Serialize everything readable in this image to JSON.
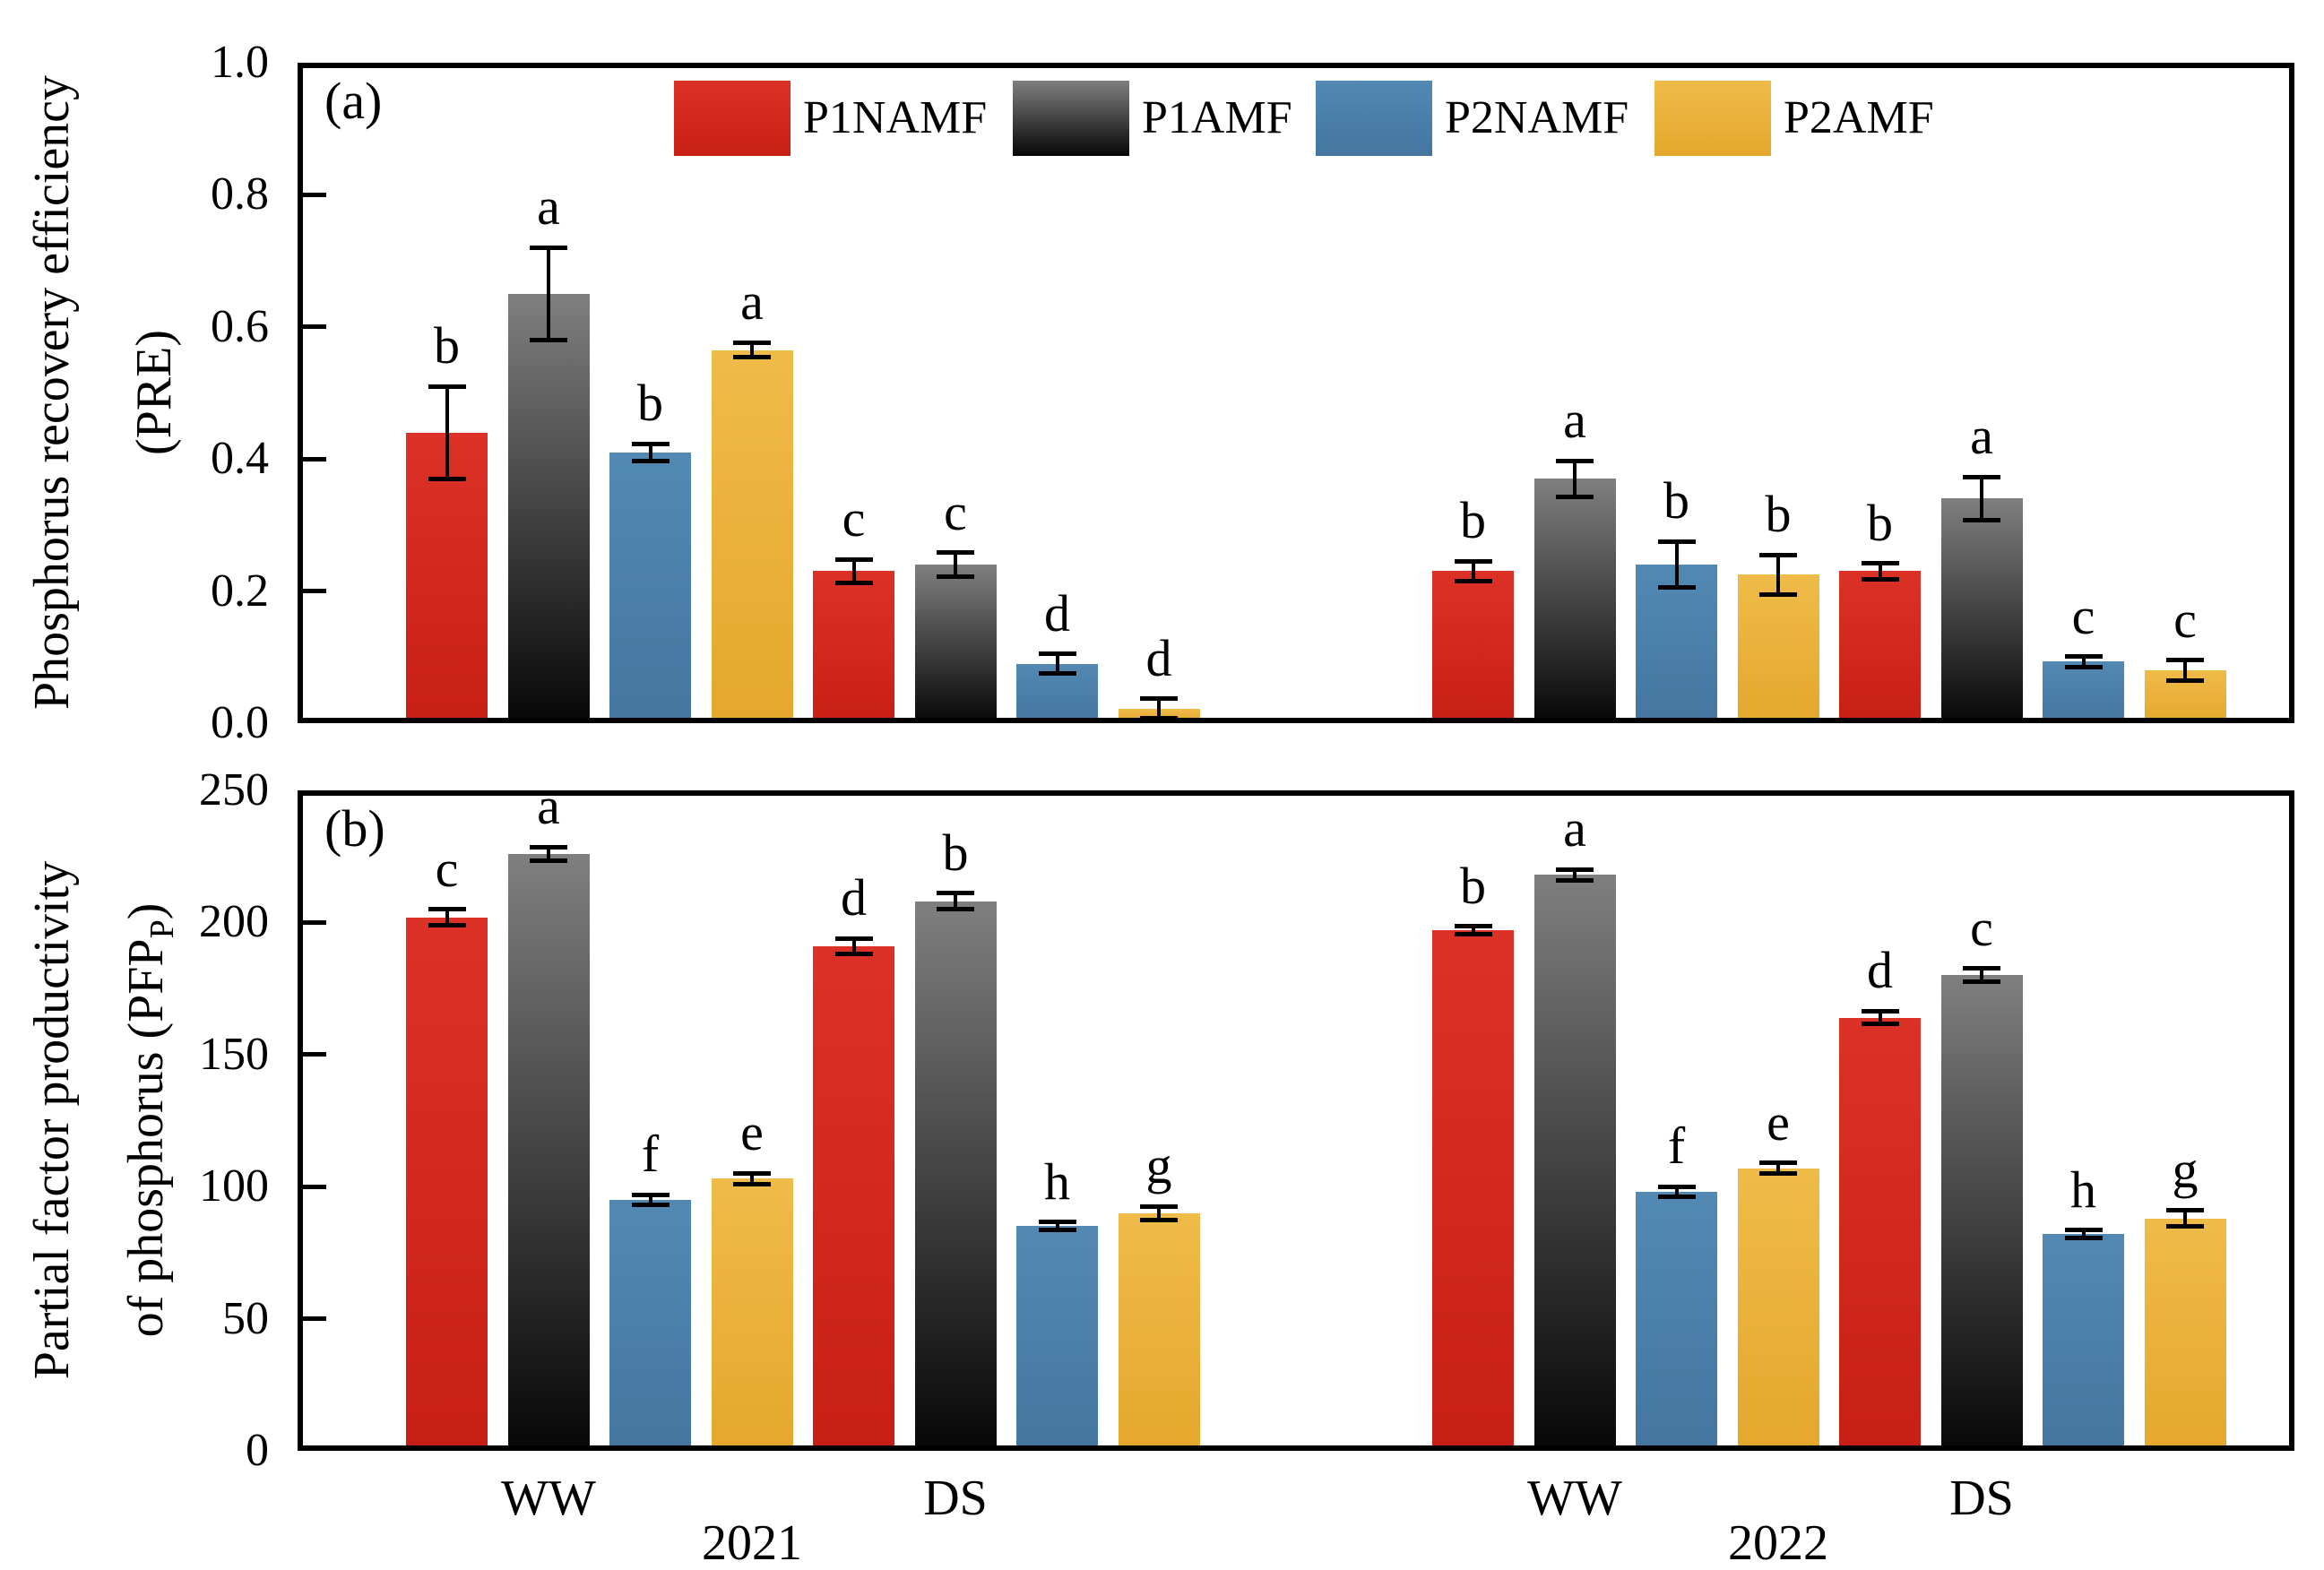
{
  "figure": {
    "panel_a_tag": "(a)",
    "panel_b_tag": "(b)",
    "series_colors": {
      "P1NAMF": {
        "top": "#dc3126",
        "bottom": "#c81f15"
      },
      "P1AMF": {
        "top": "#7f7f7f",
        "bottom": "#070707"
      },
      "P2NAMF": {
        "top": "#5289b3",
        "bottom": "#44769f"
      },
      "P2AMF": {
        "top": "#efbb49",
        "bottom": "#e5a72c"
      }
    },
    "frame_color": "#000000",
    "background_color": "#ffffff"
  },
  "legend": {
    "position": "top-center",
    "items": [
      {
        "label": "P1NAMF"
      },
      {
        "label": "P1AMF"
      },
      {
        "label": "P2NAMF"
      },
      {
        "label": "P2AMF"
      }
    ]
  },
  "x_axis": {
    "condition_labels": [
      "WW",
      "DS",
      "WW",
      "DS"
    ],
    "year_labels": [
      "2021",
      "2022"
    ]
  },
  "chart_data": [
    {
      "type": "bar",
      "panel": "a",
      "ylabel_line1": "Phosphorus recovery efficiency",
      "ylabel_line2": "(PRE)",
      "ylim": [
        0.0,
        1.0
      ],
      "grid": false,
      "yticks": [
        0.0,
        0.2,
        0.4,
        0.6,
        0.8,
        1.0
      ],
      "ytick_labels": [
        "0.0",
        "0.2",
        "0.4",
        "0.6",
        "0.8",
        "1.0"
      ],
      "groups": [
        "WW 2021",
        "DS 2021",
        "WW 2022",
        "DS 2022"
      ],
      "series": [
        {
          "name": "P1NAMF",
          "values": [
            0.44,
            0.23,
            0.23,
            0.23
          ],
          "errors": [
            0.07,
            0.018,
            0.015,
            0.012
          ],
          "letters": [
            "b",
            "c",
            "b",
            "b"
          ]
        },
        {
          "name": "P1AMF",
          "values": [
            0.65,
            0.24,
            0.37,
            0.34
          ],
          "errors": [
            0.07,
            0.018,
            0.027,
            0.033
          ],
          "letters": [
            "a",
            "c",
            "a",
            "a"
          ]
        },
        {
          "name": "P2NAMF",
          "values": [
            0.41,
            0.09,
            0.24,
            0.093
          ],
          "errors": [
            0.013,
            0.015,
            0.035,
            0.008
          ],
          "letters": [
            "b",
            "d",
            "b",
            "c"
          ]
        },
        {
          "name": "P2AMF",
          "values": [
            0.565,
            0.022,
            0.225,
            0.08
          ],
          "errors": [
            0.011,
            0.015,
            0.03,
            0.015
          ],
          "letters": [
            "a",
            "d",
            "b",
            "c"
          ]
        }
      ]
    },
    {
      "type": "bar",
      "panel": "b",
      "ylabel_line1": "Partial factor productivity",
      "ylabel_line2_pre": "of phosphorus (PFP",
      "ylabel_line2_sub": "P",
      "ylabel_line2_post": ")",
      "ylim": [
        0,
        250
      ],
      "grid": false,
      "yticks": [
        0,
        50,
        100,
        150,
        200,
        250
      ],
      "ytick_labels": [
        "0",
        "50",
        "100",
        "150",
        "200",
        "250"
      ],
      "groups": [
        "WW 2021",
        "DS 2021",
        "WW 2022",
        "DS 2022"
      ],
      "series": [
        {
          "name": "P1NAMF",
          "values": [
            202,
            191,
            197,
            164
          ],
          "errors": [
            3,
            3,
            1.5,
            2.5
          ],
          "letters": [
            "c",
            "d",
            "b",
            "d"
          ]
        },
        {
          "name": "P1AMF",
          "values": [
            226,
            208,
            218,
            180
          ],
          "errors": [
            2.5,
            3,
            2,
            2.5
          ],
          "letters": [
            "a",
            "b",
            "a",
            "c"
          ]
        },
        {
          "name": "P2NAMF",
          "values": [
            95,
            85,
            98,
            82
          ],
          "errors": [
            2,
            1.5,
            2,
            1.5
          ],
          "letters": [
            "f",
            "h",
            "f",
            "h"
          ]
        },
        {
          "name": "P2AMF",
          "values": [
            103,
            90,
            107,
            88
          ],
          "errors": [
            2,
            2.5,
            2,
            3
          ],
          "letters": [
            "e",
            "g",
            "e",
            "g"
          ]
        }
      ]
    }
  ]
}
